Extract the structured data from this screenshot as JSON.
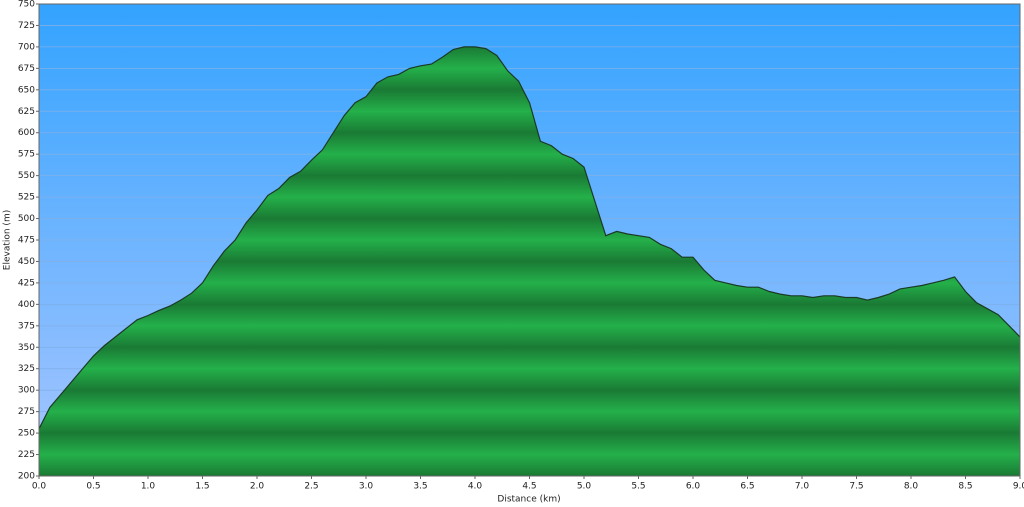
{
  "chart_data": {
    "type": "area",
    "x_label": "Distance   (km)",
    "y_label": "Elevation (m)",
    "x": [
      0.0,
      0.1,
      0.2,
      0.3,
      0.4,
      0.5,
      0.6,
      0.7,
      0.8,
      0.9,
      1.0,
      1.1,
      1.2,
      1.3,
      1.4,
      1.5,
      1.6,
      1.7,
      1.8,
      1.9,
      2.0,
      2.1,
      2.2,
      2.3,
      2.4,
      2.5,
      2.6,
      2.7,
      2.8,
      2.9,
      3.0,
      3.1,
      3.2,
      3.3,
      3.4,
      3.5,
      3.6,
      3.7,
      3.8,
      3.9,
      4.0,
      4.1,
      4.2,
      4.3,
      4.4,
      4.5,
      4.6,
      4.7,
      4.8,
      4.9,
      5.0,
      5.1,
      5.2,
      5.3,
      5.4,
      5.5,
      5.6,
      5.7,
      5.8,
      5.9,
      6.0,
      6.1,
      6.2,
      6.3,
      6.4,
      6.5,
      6.6,
      6.7,
      6.8,
      6.9,
      7.0,
      7.1,
      7.2,
      7.3,
      7.4,
      7.5,
      7.6,
      7.7,
      7.8,
      7.9,
      8.0,
      8.1,
      8.2,
      8.3,
      8.4,
      8.5,
      8.6,
      8.7,
      8.8,
      8.9,
      9.0
    ],
    "values": [
      255,
      280,
      295,
      310,
      325,
      340,
      352,
      362,
      372,
      382,
      387,
      393,
      398,
      405,
      413,
      425,
      445,
      462,
      475,
      495,
      510,
      527,
      535,
      548,
      555,
      568,
      580,
      600,
      620,
      635,
      642,
      658,
      665,
      668,
      675,
      678,
      680,
      688,
      697,
      700,
      700,
      698,
      690,
      672,
      660,
      635,
      590,
      585,
      575,
      570,
      560,
      520,
      480,
      485,
      482,
      480,
      478,
      470,
      465,
      455,
      455,
      440,
      428,
      425,
      422,
      420,
      420,
      415,
      412,
      410,
      410,
      408,
      410,
      410,
      408,
      408,
      405,
      408,
      412,
      418,
      420,
      422,
      425,
      428,
      432,
      415,
      402,
      395,
      388,
      375,
      362
    ],
    "color": "#22a844",
    "xlim": [
      0,
      9
    ],
    "ylim": [
      200,
      750
    ],
    "xticks": [
      {
        "value": 0,
        "label": "0.0"
      },
      0.5,
      {
        "value": 1,
        "label": "1.0"
      },
      1.5,
      {
        "value": 2,
        "label": "2.0"
      },
      2.5,
      {
        "value": 3,
        "label": "3.0"
      },
      3.5,
      {
        "value": 4,
        "label": "4.0"
      },
      4.5,
      {
        "value": 5,
        "label": "5.0"
      },
      5.5,
      {
        "value": 6,
        "label": "6.0"
      },
      6.5,
      {
        "value": 7,
        "label": "7.0"
      },
      7.5,
      {
        "value": 8,
        "label": "8.0"
      },
      8.5,
      {
        "value": 9,
        "label": "9.0"
      }
    ],
    "yticks": [
      200,
      225,
      250,
      275,
      300,
      325,
      350,
      375,
      400,
      425,
      450,
      475,
      500,
      525,
      550,
      575,
      600,
      625,
      650,
      675,
      700,
      725,
      750
    ],
    "grid": true
  }
}
